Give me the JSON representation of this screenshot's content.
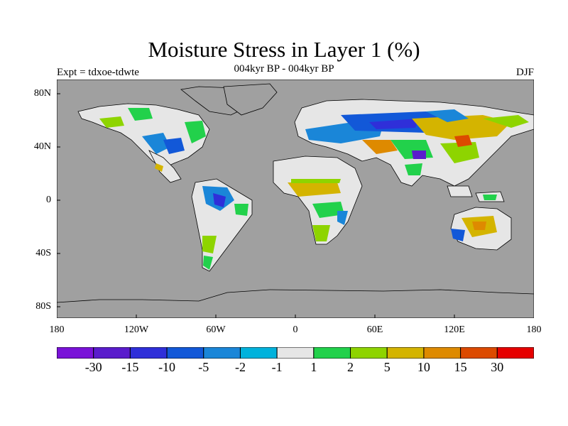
{
  "header": {
    "title": "Moisture Stress in Layer 1 (%)",
    "subtitle": "004kyr BP - 004kyr BP",
    "left_label": "Expt = tdxoe-tdwte",
    "right_label": "DJF"
  },
  "map": {
    "projection": "equirectangular",
    "ocean_color": "#a0a0a0",
    "lat_ticks": [
      "80N",
      "40N",
      "0",
      "40S",
      "80S"
    ],
    "lon_ticks": [
      "180",
      "120W",
      "60W",
      "0",
      "60E",
      "120E",
      "180"
    ]
  },
  "colorbar": {
    "colors": [
      "#7a12d8",
      "#5a1ccc",
      "#2f2fd9",
      "#1258d8",
      "#1a86d8",
      "#00b2dc",
      "#e6e6e6",
      "#22d14b",
      "#8ed400",
      "#d4b400",
      "#de8a00",
      "#dc4a00",
      "#e60000"
    ],
    "labels": [
      "-30",
      "-15",
      "-10",
      "-5",
      "-2",
      "-1",
      "1",
      "2",
      "5",
      "10",
      "15",
      "30"
    ]
  }
}
